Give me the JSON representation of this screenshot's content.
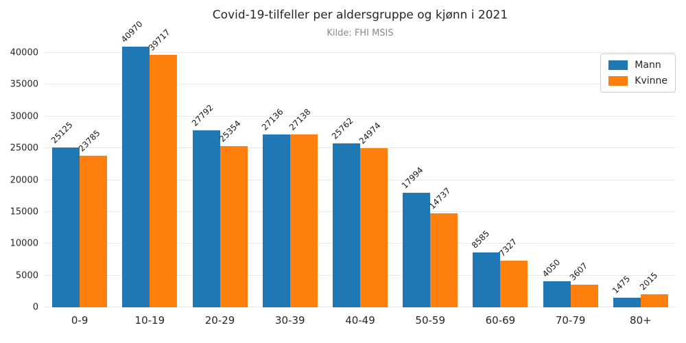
{
  "title": "Covid-19-tilfeller per aldersgruppe og kjønn i 2021",
  "subtitle": "Kilde: FHI MSIS",
  "colors": {
    "mann": "#1f77b4",
    "kvinne": "#ff7f0e",
    "grid": "#e7e7e7",
    "subtitle_text": "#8a8a8a",
    "background": "#ffffff"
  },
  "legend": {
    "position": "upper-right",
    "items": [
      {
        "label": "Mann",
        "color": "#1f77b4"
      },
      {
        "label": "Kvinne",
        "color": "#ff7f0e"
      }
    ]
  },
  "chart_data": {
    "type": "bar",
    "title": "Covid-19-tilfeller per aldersgruppe og kjønn i 2021",
    "subtitle": "Kilde: FHI MSIS",
    "categories": [
      "0-9",
      "10-19",
      "20-29",
      "30-39",
      "40-49",
      "50-59",
      "60-69",
      "70-79",
      "80+"
    ],
    "series": [
      {
        "name": "Mann",
        "color": "#1f77b4",
        "values": [
          25125,
          40970,
          27792,
          27136,
          25762,
          17994,
          8585,
          4050,
          1475
        ]
      },
      {
        "name": "Kvinne",
        "color": "#ff7f0e",
        "values": [
          23785,
          39717,
          25354,
          27138,
          24974,
          14737,
          7327,
          3607,
          2015
        ]
      }
    ],
    "xlabel": "",
    "ylabel": "",
    "ylim": [
      0,
      44000
    ],
    "yticks": [
      0,
      5000,
      10000,
      15000,
      20000,
      25000,
      30000,
      35000,
      40000
    ],
    "grid": true,
    "bar_labels": true,
    "bar_label_rotation": 45,
    "legend_position": "upper right"
  }
}
